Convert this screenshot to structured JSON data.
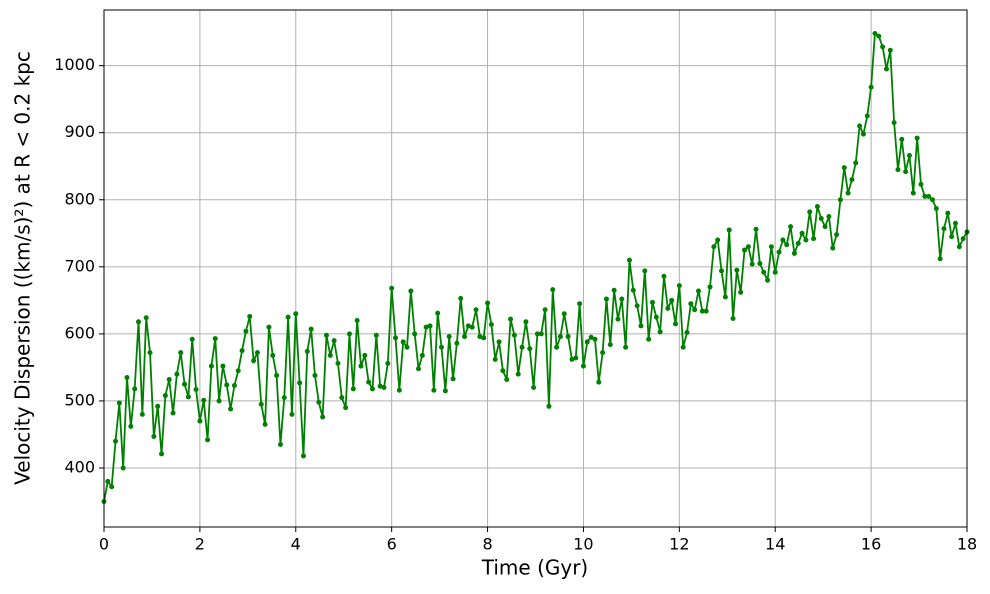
{
  "chart_data": {
    "type": "line",
    "xlabel": "Time (Gyr)",
    "ylabel": "Velocity Dispersion ((km/s)²) at R < 0.2 kpc",
    "color": "#008000",
    "grid": true,
    "xlim": [
      0,
      18
    ],
    "xticks": [
      0,
      2,
      4,
      6,
      8,
      10,
      12,
      14,
      16,
      18
    ],
    "ylim": [
      312,
      1083
    ],
    "yticks": [
      400,
      500,
      600,
      700,
      800,
      900,
      1000
    ],
    "x": [
      0,
      0.08,
      0.16,
      0.24,
      0.32,
      0.4,
      0.48,
      0.56,
      0.64,
      0.72,
      0.8,
      0.88,
      0.96,
      1.04,
      1.12,
      1.2,
      1.28,
      1.36,
      1.44,
      1.52,
      1.6,
      1.68,
      1.76,
      1.84,
      1.92,
      2,
      2.08,
      2.16,
      2.24,
      2.32,
      2.4,
      2.48,
      2.56,
      2.64,
      2.72,
      2.8,
      2.88,
      2.96,
      3.04,
      3.12,
      3.2,
      3.28,
      3.36,
      3.44,
      3.52,
      3.6,
      3.68,
      3.76,
      3.84,
      3.92,
      4,
      4.08,
      4.16,
      4.24,
      4.32,
      4.4,
      4.48,
      4.56,
      4.64,
      4.72,
      4.8,
      4.88,
      4.96,
      5.04,
      5.12,
      5.2,
      5.28,
      5.36,
      5.44,
      5.52,
      5.6,
      5.68,
      5.76,
      5.84,
      5.92,
      6,
      6.08,
      6.16,
      6.24,
      6.32,
      6.4,
      6.48,
      6.56,
      6.64,
      6.72,
      6.8,
      6.88,
      6.96,
      7.04,
      7.12,
      7.2,
      7.28,
      7.36,
      7.44,
      7.52,
      7.6,
      7.68,
      7.76,
      7.84,
      7.92,
      8,
      8.08,
      8.16,
      8.24,
      8.32,
      8.4,
      8.48,
      8.56,
      8.64,
      8.72,
      8.8,
      8.88,
      8.96,
      9.04,
      9.12,
      9.2,
      9.28,
      9.36,
      9.44,
      9.52,
      9.6,
      9.68,
      9.76,
      9.84,
      9.92,
      10,
      10.08,
      10.16,
      10.24,
      10.32,
      10.4,
      10.48,
      10.56,
      10.64,
      10.72,
      10.8,
      10.88,
      10.96,
      11.04,
      11.12,
      11.2,
      11.28,
      11.36,
      11.44,
      11.52,
      11.6,
      11.68,
      11.76,
      11.84,
      11.92,
      12,
      12.08,
      12.16,
      12.24,
      12.32,
      12.4,
      12.48,
      12.56,
      12.64,
      12.72,
      12.8,
      12.88,
      12.96,
      13.04,
      13.12,
      13.2,
      13.28,
      13.36,
      13.44,
      13.52,
      13.6,
      13.68,
      13.76,
      13.84,
      13.92,
      14,
      14.08,
      14.16,
      14.24,
      14.32,
      14.4,
      14.48,
      14.56,
      14.64,
      14.72,
      14.8,
      14.88,
      14.96,
      15.04,
      15.12,
      15.2,
      15.28,
      15.36,
      15.44,
      15.52,
      15.6,
      15.68,
      15.76,
      15.84,
      15.92,
      16,
      16.08,
      16.16,
      16.24,
      16.32,
      16.4,
      16.48,
      16.56,
      16.64,
      16.72,
      16.8,
      16.88,
      16.96,
      17.04,
      17.12,
      17.2,
      17.28,
      17.36,
      17.44,
      17.52,
      17.6,
      17.68,
      17.76,
      17.84,
      17.92,
      18
    ],
    "values": [
      350,
      380,
      372,
      440,
      497,
      400,
      535,
      462,
      518,
      618,
      480,
      624,
      572,
      447,
      492,
      421,
      508,
      532,
      482,
      540,
      572,
      525,
      506,
      592,
      517,
      470,
      501,
      442,
      552,
      593,
      500,
      552,
      524,
      488,
      523,
      545,
      575,
      604,
      626,
      560,
      572,
      495,
      465,
      610,
      568,
      538,
      435,
      505,
      625,
      480,
      630,
      527,
      418,
      574,
      607,
      538,
      498,
      476,
      598,
      568,
      590,
      556,
      505,
      490,
      600,
      518,
      620,
      552,
      568,
      528,
      518,
      598,
      522,
      520,
      556,
      668,
      594,
      516,
      588,
      580,
      664,
      600,
      548,
      568,
      610,
      612,
      516,
      631,
      580,
      515,
      596,
      533,
      586,
      653,
      596,
      612,
      610,
      636,
      596,
      594,
      646,
      614,
      562,
      588,
      545,
      532,
      622,
      598,
      540,
      580,
      618,
      578,
      520,
      600,
      600,
      636,
      492,
      666,
      580,
      596,
      630,
      596,
      562,
      564,
      645,
      552,
      588,
      595,
      592,
      528,
      572,
      652,
      584,
      665,
      622,
      652,
      580,
      710,
      665,
      642,
      612,
      694,
      592,
      647,
      625,
      603,
      686,
      638,
      650,
      615,
      672,
      580,
      602,
      645,
      636,
      664,
      634,
      634,
      670,
      730,
      740,
      694,
      655,
      755,
      623,
      695,
      662,
      725,
      730,
      704,
      756,
      705,
      692,
      680,
      730,
      692,
      722,
      740,
      733,
      760,
      720,
      735,
      750,
      740,
      782,
      742,
      790,
      772,
      760,
      775,
      728,
      748,
      800,
      848,
      810,
      830,
      855,
      910,
      898,
      925,
      968,
      1048,
      1044,
      1028,
      995,
      1023,
      915,
      845,
      890,
      842,
      866,
      810,
      892,
      823,
      805,
      805,
      800,
      787,
      712,
      757,
      780,
      745,
      765,
      730,
      742,
      752
    ]
  }
}
